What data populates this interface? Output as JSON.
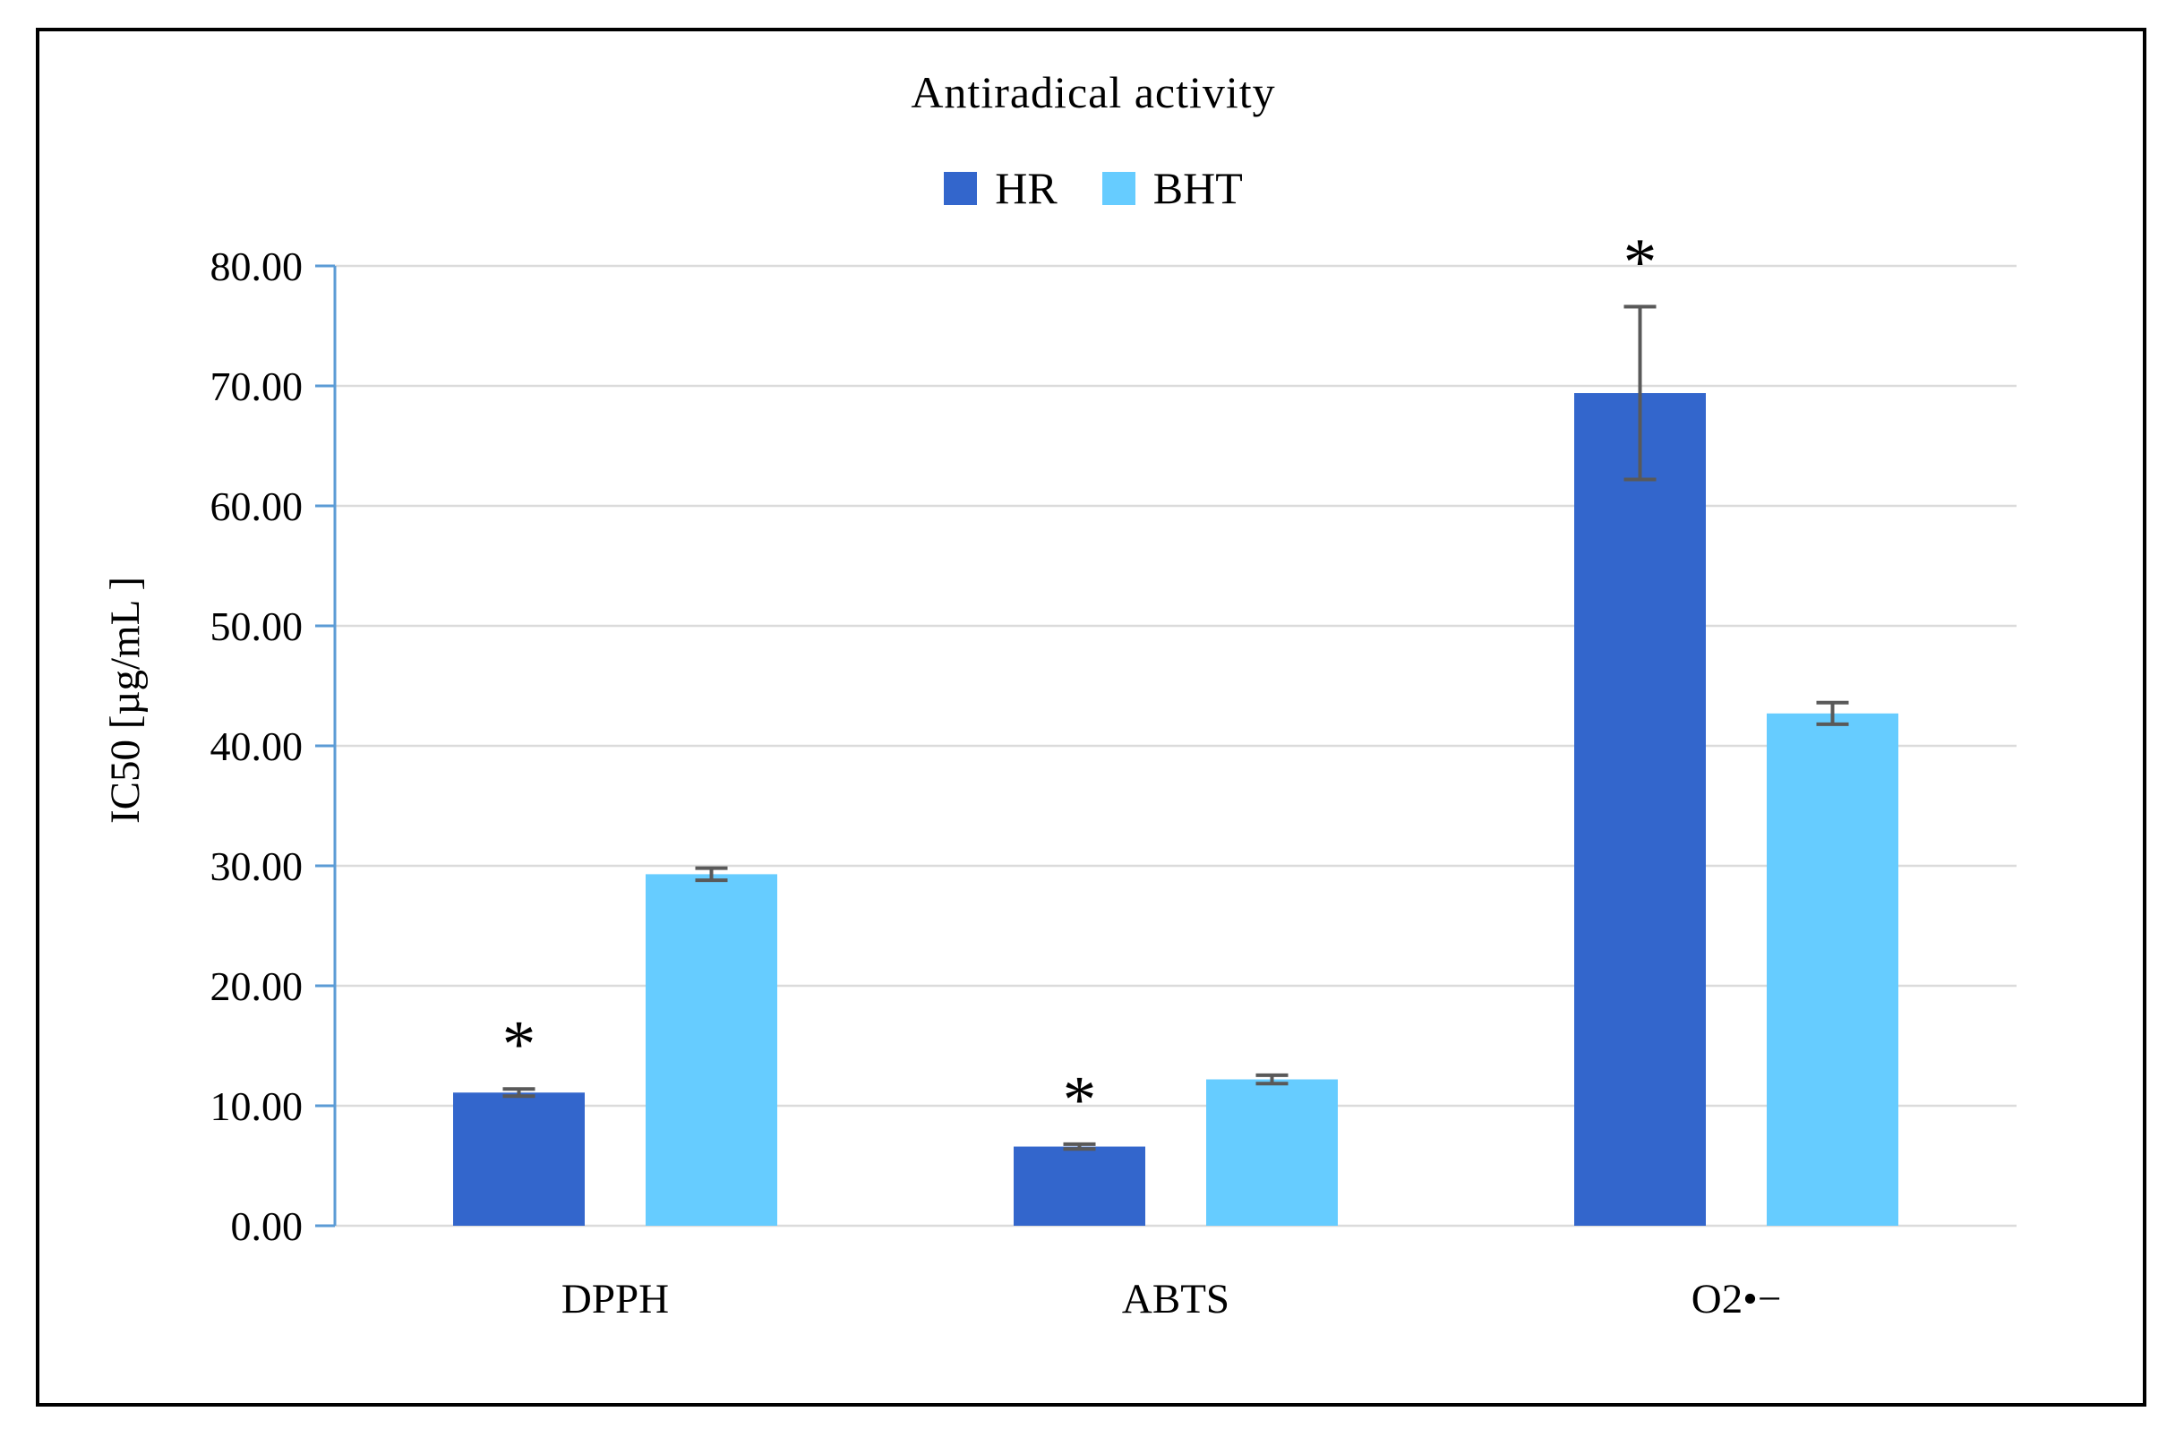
{
  "figure": {
    "title": "Antiradical activity",
    "background": "#FFFFFF",
    "border_color": "#000000"
  },
  "legend": {
    "items": [
      {
        "label": "HR",
        "color": "#3366CC"
      },
      {
        "label": "BHT",
        "color": "#66CCFF"
      }
    ]
  },
  "chart_data": {
    "type": "bar",
    "title": "Antiradical activity",
    "categories": [
      "DPPH",
      "ABTS",
      "O2•−"
    ],
    "series": [
      {
        "name": "HR",
        "color": "#3366CC",
        "values": [
          11.1,
          6.6,
          69.4
        ],
        "errors": [
          0.3,
          0.2,
          7.2
        ],
        "significant": [
          true,
          true,
          true
        ]
      },
      {
        "name": "BHT",
        "color": "#66CCFF",
        "values": [
          29.3,
          12.2,
          42.7
        ],
        "errors": [
          0.5,
          0.35,
          0.9
        ],
        "significant": [
          false,
          false,
          false
        ]
      }
    ],
    "significance_marker": "*",
    "xlabel": "",
    "ylabel": "IC50 [µg/mL ]",
    "ylim": [
      0,
      80
    ],
    "y_tick_step": 10,
    "y_tick_decimals": 2,
    "grid": true,
    "legend_position": "top",
    "axis_color": "#5B9BD5",
    "gridline_color": "#DBDBDB",
    "error_bar_color": "#595959",
    "text_color": "#000000"
  }
}
